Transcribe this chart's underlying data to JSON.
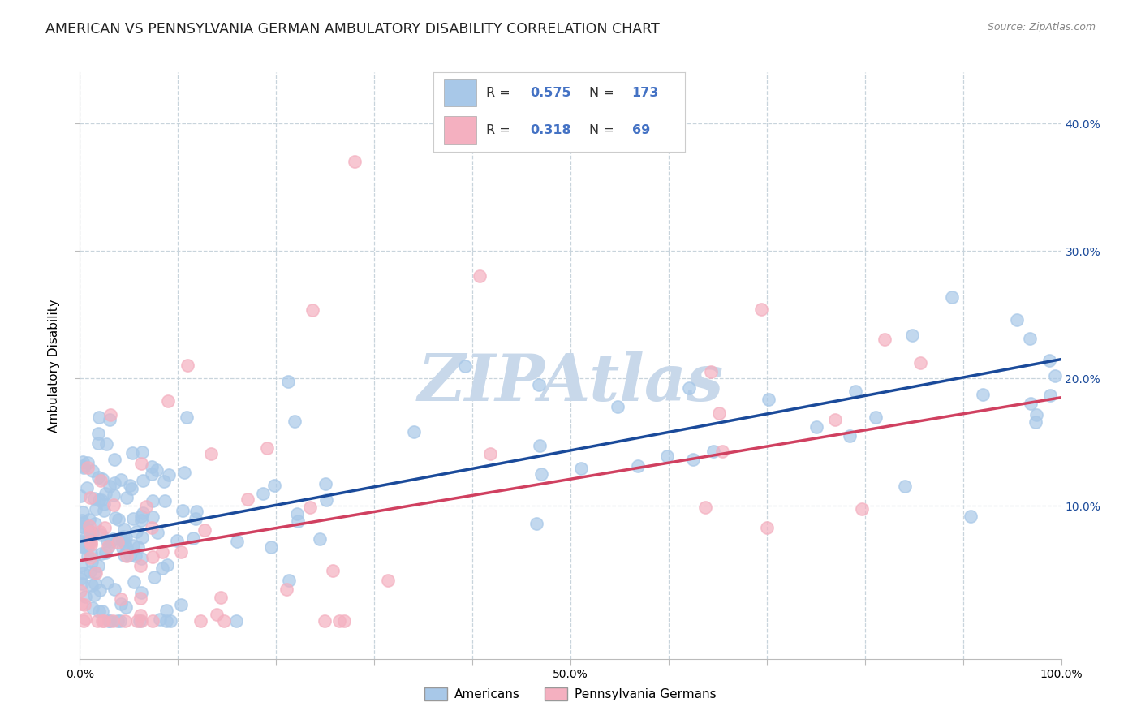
{
  "title": "AMERICAN VS PENNSYLVANIA GERMAN AMBULATORY DISABILITY CORRELATION CHART",
  "source": "Source: ZipAtlas.com",
  "ylabel": "Ambulatory Disability",
  "xlim": [
    0,
    1.0
  ],
  "ylim": [
    -0.02,
    0.44
  ],
  "xticklabels": [
    "0.0%",
    "",
    "",
    "",
    "",
    "50.0%",
    "",
    "",
    "",
    "",
    "100.0%"
  ],
  "yticks_left": [],
  "yticks_right": [
    0.1,
    0.2,
    0.3,
    0.4
  ],
  "yticklabels_right": [
    "10.0%",
    "20.0%",
    "30.0%",
    "40.0%"
  ],
  "blue_color": "#a8c8e8",
  "pink_color": "#f4b0c0",
  "blue_line_color": "#1a4a9a",
  "pink_line_color": "#d04060",
  "watermark_color": "#c8d8ea",
  "legend_R1": "0.575",
  "legend_N1": "173",
  "legend_R2": "0.318",
  "legend_N2": "69",
  "legend_label1": "Americans",
  "legend_label2": "Pennsylvania Germans",
  "legend_value_color": "#4472c4",
  "title_fontsize": 12.5,
  "axis_label_fontsize": 11,
  "tick_fontsize": 10,
  "background_color": "#ffffff",
  "grid_color": "#c8d4dc",
  "blue_trend_x": [
    0.0,
    1.0
  ],
  "blue_trend_y": [
    0.072,
    0.215
  ],
  "pink_trend_x": [
    0.0,
    1.0
  ],
  "pink_trend_y": [
    0.057,
    0.185
  ]
}
